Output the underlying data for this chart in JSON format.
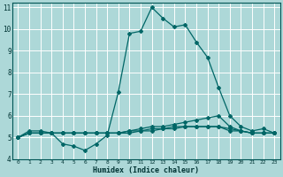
{
  "xlabel": "Humidex (Indice chaleur)",
  "background_color": "#add8d8",
  "grid_color": "#ffffff",
  "line_color": "#006666",
  "xlim": [
    -0.5,
    23.5
  ],
  "ylim": [
    4,
    11.2
  ],
  "xticks": [
    0,
    1,
    2,
    3,
    4,
    5,
    6,
    7,
    8,
    9,
    10,
    11,
    12,
    13,
    14,
    15,
    16,
    17,
    18,
    19,
    20,
    21,
    22,
    23
  ],
  "yticks": [
    4,
    5,
    6,
    7,
    8,
    9,
    10,
    11
  ],
  "series": [
    {
      "x": [
        0,
        1,
        2,
        3,
        4,
        5,
        6,
        7,
        8,
        9,
        10,
        11,
        12,
        13,
        14,
        15,
        16,
        17,
        18,
        19,
        20,
        21,
        22,
        23
      ],
      "y": [
        5.0,
        5.3,
        5.3,
        5.2,
        4.7,
        4.6,
        4.4,
        4.7,
        5.1,
        7.1,
        9.8,
        9.9,
        11.0,
        10.5,
        10.1,
        10.2,
        9.4,
        8.7,
        7.3,
        6.0,
        5.5,
        5.3,
        5.4,
        5.2
      ]
    },
    {
      "x": [
        0,
        1,
        2,
        3,
        4,
        5,
        6,
        7,
        8,
        9,
        10,
        11,
        12,
        13,
        14,
        15,
        16,
        17,
        18,
        19,
        20,
        21,
        22,
        23
      ],
      "y": [
        5.0,
        5.2,
        5.2,
        5.2,
        5.2,
        5.2,
        5.2,
        5.2,
        5.2,
        5.2,
        5.3,
        5.4,
        5.5,
        5.5,
        5.6,
        5.7,
        5.8,
        5.9,
        6.0,
        5.5,
        5.3,
        5.2,
        5.2,
        5.2
      ]
    },
    {
      "x": [
        0,
        1,
        2,
        3,
        4,
        5,
        6,
        7,
        8,
        9,
        10,
        11,
        12,
        13,
        14,
        15,
        16,
        17,
        18,
        19,
        20,
        21,
        22,
        23
      ],
      "y": [
        5.0,
        5.2,
        5.2,
        5.2,
        5.2,
        5.2,
        5.2,
        5.2,
        5.2,
        5.2,
        5.3,
        5.3,
        5.4,
        5.4,
        5.5,
        5.5,
        5.5,
        5.5,
        5.5,
        5.3,
        5.3,
        5.2,
        5.2,
        5.2
      ]
    },
    {
      "x": [
        0,
        1,
        2,
        3,
        4,
        5,
        6,
        7,
        8,
        9,
        10,
        11,
        12,
        13,
        14,
        15,
        16,
        17,
        18,
        19,
        20,
        21,
        22,
        23
      ],
      "y": [
        5.0,
        5.2,
        5.2,
        5.2,
        5.2,
        5.2,
        5.2,
        5.2,
        5.2,
        5.2,
        5.2,
        5.3,
        5.3,
        5.4,
        5.4,
        5.5,
        5.5,
        5.5,
        5.5,
        5.4,
        5.3,
        5.2,
        5.2,
        5.2
      ]
    }
  ]
}
